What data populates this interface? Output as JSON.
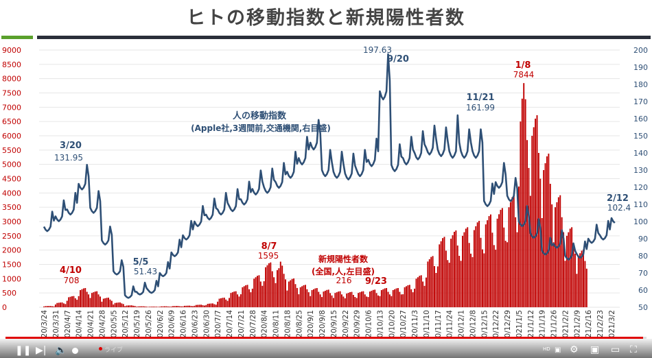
{
  "title": "ヒトの移動指数と新規陽性者数",
  "colors": {
    "mobility": "#2e4f75",
    "cases": "#c00000",
    "left_axis": "#c00000",
    "right_axis": "#2e4f75"
  },
  "player": {
    "progress": 0.995,
    "live_label": "ライブ",
    "quality_badge": "HD",
    "icons": [
      "pause-icon",
      "next-icon",
      "volume-icon",
      "settings-icon",
      "miniplayer-icon",
      "theater-icon",
      "fullscreen-icon"
    ]
  },
  "chart_data": {
    "type": "bar+line",
    "x_tick_labels": [
      "2020/3/24",
      "2020/3/31",
      "2020/4/7",
      "2020/4/14",
      "2020/4/21",
      "2020/4/28",
      "2020/5/5",
      "2020/5/12",
      "2020/5/19",
      "2020/5/26",
      "2020/6/2",
      "2020/6/9",
      "2020/6/16",
      "2020/6/23",
      "2020/6/30",
      "2020/7/7",
      "2020/7/14",
      "2020/7/21",
      "2020/7/28",
      "2020/8/4",
      "2020/8/11",
      "2020/8/18",
      "2020/8/25",
      "2020/9/1",
      "2020/9/8",
      "2020/9/15",
      "2020/9/22",
      "2020/9/29",
      "2020/10/6",
      "2020/10/13",
      "2020/10/20",
      "2020/10/27",
      "2020/11/3",
      "2020/11/10",
      "2020/11/17",
      "2020/11/24",
      "2020/12/1",
      "2020/12/8",
      "2020/12/15",
      "2020/12/22",
      "2020/12/29",
      "2021/1/5",
      "2021/1/12",
      "2021/1/19",
      "2021/1/26",
      "2021/2/2",
      "2021/2/9",
      "2021/2/16",
      "2021/2/23",
      "2021/3/2"
    ],
    "left_axis": {
      "ylim": [
        0,
        9000
      ],
      "ticks": [
        "0",
        "500",
        "1000",
        "1500",
        "2000",
        "2500",
        "3000",
        "3500",
        "4000",
        "4500",
        "5000",
        "5500",
        "6000",
        "6500",
        "7000",
        "7500",
        "8000",
        "8500",
        "9000"
      ]
    },
    "right_axis": {
      "ylim": [
        50,
        200
      ],
      "ticks": [
        "50",
        "60",
        "70",
        "80",
        "90",
        "100",
        "110",
        "120",
        "130",
        "140",
        "150",
        "160",
        "170",
        "180",
        "190",
        "200"
      ]
    },
    "series": [
      {
        "name": "新規陽性者数",
        "type": "bar",
        "axis": "left",
        "weekly_values": [
          40,
          150,
          350,
          600,
          500,
          300,
          150,
          60,
          30,
          20,
          30,
          40,
          50,
          80,
          120,
          300,
          500,
          700,
          1000,
          1400,
          1300,
          900,
          700,
          600,
          550,
          500,
          480,
          500,
          550,
          600,
          600,
          700,
          1000,
          1600,
          2200,
          2400,
          2500,
          2700,
          2900,
          3100,
          3500,
          6500,
          6000,
          4800,
          3500,
          2500,
          1800
        ]
      },
      {
        "name": "人の移動指数",
        "type": "line",
        "axis": "right",
        "weekly_values": [
          97,
          103,
          107,
          122,
          108,
          89,
          71,
          57,
          59,
          60,
          70,
          82,
          92,
          100,
          104,
          107,
          109,
          113,
          119,
          120,
          123,
          129,
          137,
          146,
          130,
          129,
          128,
          130,
          136,
          176,
          133,
          137,
          140,
          143,
          142,
          141,
          141,
          141,
          112,
          123,
          115,
          100,
          93,
          83,
          87,
          80,
          81,
          90,
          92,
          102
        ]
      }
    ],
    "annotations": {
      "mobility_label": "人の移動指数",
      "mobility_sub": "(Apple社,3週間前,交通機関,右目盛)",
      "cases_label": "新規陽性者数",
      "cases_sub": "(全国,人,左目盛)",
      "m_0320_date": "3/20",
      "m_0320_val": "131.95",
      "m_0505_date": "5/5",
      "m_0505_val": "51.43",
      "m_1006_val": "197.63",
      "m_0920_date": "9/20",
      "m_1121_date": "11/21",
      "m_1121_val": "161.99",
      "m_0212_date": "2/12",
      "m_0212_val": "102.4",
      "c_0410_date": "4/10",
      "c_0410_val": "708",
      "c_0807_date": "8/7",
      "c_0807_val": "1595",
      "c_0923_val": "216",
      "c_0923_date": "9/23",
      "c_0108_date": "1/8",
      "c_0108_val": "7844"
    }
  }
}
